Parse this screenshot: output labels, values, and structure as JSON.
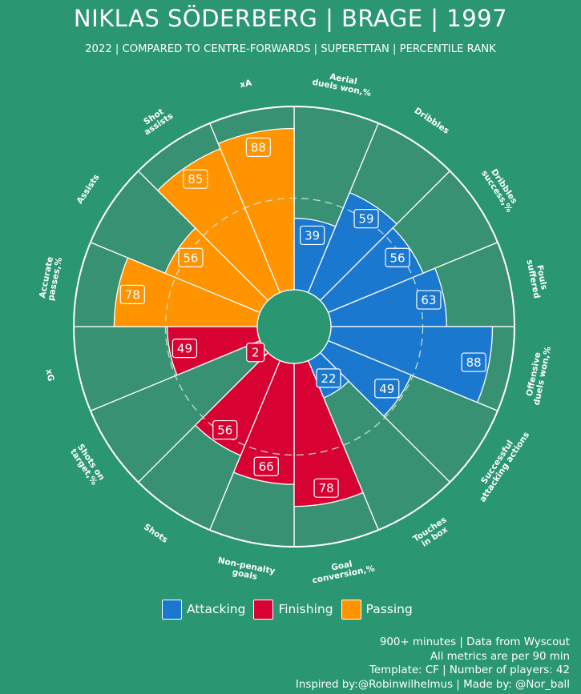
{
  "header": {
    "title": "NIKLAS SÖDERBERG | BRAGE | 1997",
    "subtitle": "2022 | COMPARED TO CENTRE-FORWARDS | SUPERETTAN | PERCENTILE RANK"
  },
  "colors": {
    "background": "#2a9672",
    "slice_background": "#389173",
    "Attacking": "#1a78cf",
    "Finishing": "#d70232",
    "Passing": "#ff9300"
  },
  "chart_data": {
    "type": "polar-bar",
    "title": "NIKLAS SÖDERBERG | BRAGE | 1997",
    "subtitle": "2022 | COMPARED TO CENTRE-FORWARDS | SUPERETTAN | PERCENTILE RANK",
    "range": [
      0,
      100
    ],
    "reference_ring": 50,
    "categories": [
      {
        "label": "Aerial duels won,%",
        "value": 39,
        "group": "Attacking"
      },
      {
        "label": "Dribbles",
        "value": 59,
        "group": "Attacking"
      },
      {
        "label": "Dribbles success,%",
        "value": 56,
        "group": "Attacking"
      },
      {
        "label": "Fouls suffered",
        "value": 63,
        "group": "Attacking"
      },
      {
        "label": "Offensive duels won,%",
        "value": 88,
        "group": "Attacking"
      },
      {
        "label": "Successful attacking actions",
        "value": 49,
        "group": "Attacking"
      },
      {
        "label": "Touches in box",
        "value": 22,
        "group": "Attacking"
      },
      {
        "label": "Goal conversion,%",
        "value": 78,
        "group": "Finishing"
      },
      {
        "label": "Non-penalty goals",
        "value": 66,
        "group": "Finishing"
      },
      {
        "label": "Shots",
        "value": 56,
        "group": "Finishing"
      },
      {
        "label": "Shots on target,%",
        "value": 2,
        "group": "Finishing"
      },
      {
        "label": "xG",
        "value": 49,
        "group": "Finishing"
      },
      {
        "label": "Accurate passes,%",
        "value": 78,
        "group": "Passing"
      },
      {
        "label": "Assists",
        "value": 56,
        "group": "Passing"
      },
      {
        "label": "Shot assists",
        "value": 85,
        "group": "Passing"
      },
      {
        "label": "xA",
        "value": 88,
        "group": "Passing"
      }
    ],
    "legend": [
      "Attacking",
      "Finishing",
      "Passing"
    ],
    "legend_position": "bottom"
  },
  "legend": {
    "attacking": "Attacking",
    "finishing": "Finishing",
    "passing": "Passing"
  },
  "footer": {
    "line1": "900+ minutes | Data from Wyscout",
    "line2": "All metrics are per 90 min",
    "line3": "Template: CF | Number of players: 42",
    "line4": "Inspired by:@Robinwilhelmus | Made by: @Nor_ball"
  }
}
